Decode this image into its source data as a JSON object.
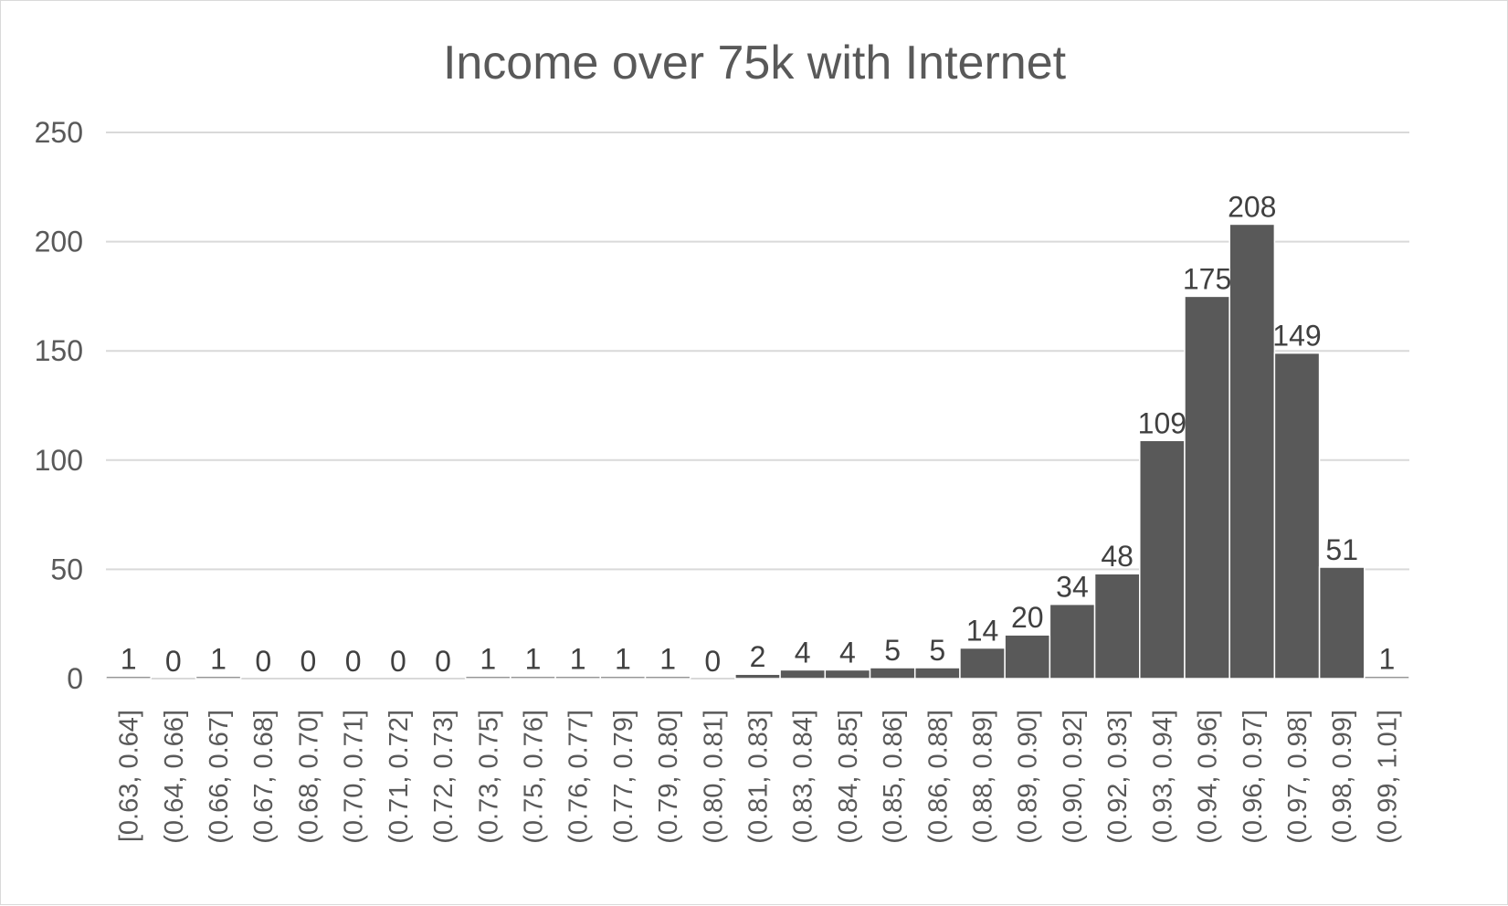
{
  "chart_data": {
    "type": "bar",
    "title": "Income over 75k with Internet",
    "xlabel": "",
    "ylabel": "",
    "ylim": [
      0,
      250
    ],
    "yticks": [
      "0",
      "50",
      "100",
      "150",
      "200",
      "250"
    ],
    "grid": true,
    "legend": "none",
    "bar_color": "#595959",
    "bar_edge_color": "#ffffff",
    "grid_color": "#d9d9d9",
    "categories": [
      "[0.63, 0.64]",
      "(0.64, 0.66]",
      "(0.66, 0.67]",
      "(0.67, 0.68]",
      "(0.68, 0.70]",
      "(0.70, 0.71]",
      "(0.71, 0.72]",
      "(0.72, 0.73]",
      "(0.73, 0.75]",
      "(0.75, 0.76]",
      "(0.76, 0.77]",
      "(0.77, 0.79]",
      "(0.79, 0.80]",
      "(0.80, 0.81]",
      "(0.81, 0.83]",
      "(0.83, 0.84]",
      "(0.84, 0.85]",
      "(0.85, 0.86]",
      "(0.86, 0.88]",
      "(0.88, 0.89]",
      "(0.89, 0.90]",
      "(0.90, 0.92]",
      "(0.92, 0.93]",
      "(0.93, 0.94]",
      "(0.94, 0.96]",
      "(0.96, 0.97]",
      "(0.97, 0.98]",
      "(0.98, 0.99]",
      "(0.99, 1.01]"
    ],
    "values": [
      1,
      0,
      1,
      0,
      0,
      0,
      0,
      0,
      1,
      1,
      1,
      1,
      1,
      0,
      2,
      4,
      4,
      5,
      5,
      14,
      20,
      34,
      48,
      109,
      175,
      208,
      149,
      51,
      1
    ]
  }
}
